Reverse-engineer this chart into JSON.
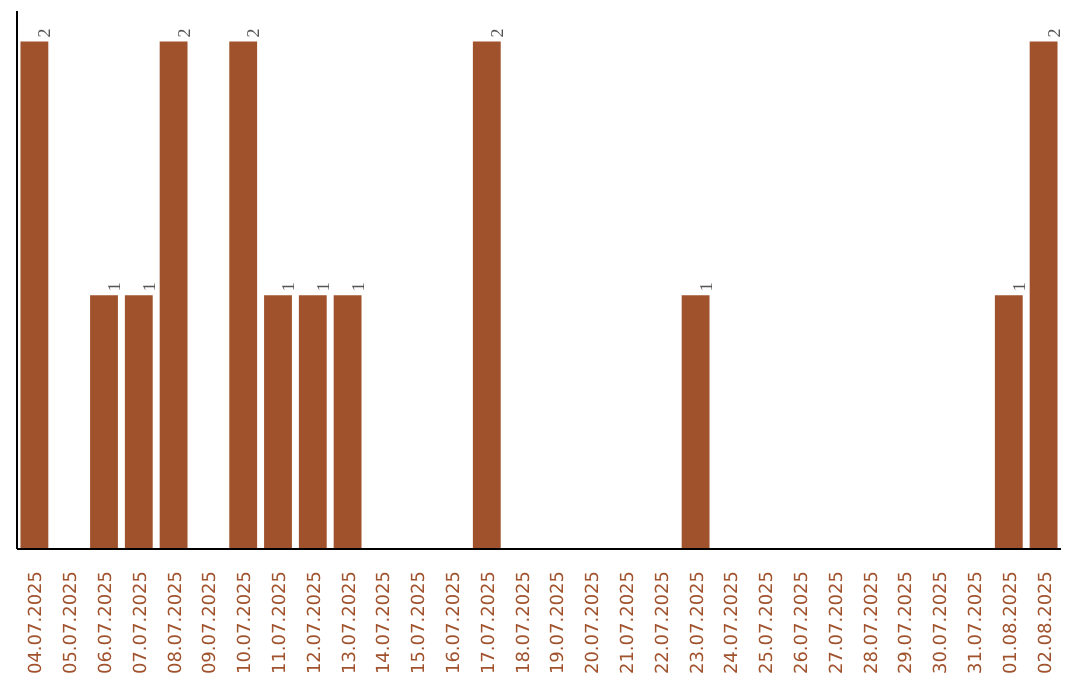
{
  "chart_data": {
    "type": "bar",
    "categories": [
      "04.07.2025",
      "05.07.2025",
      "06.07.2025",
      "07.07.2025",
      "08.07.2025",
      "09.07.2025",
      "10.07.2025",
      "11.07.2025",
      "12.07.2025",
      "13.07.2025",
      "14.07.2025",
      "15.07.2025",
      "16.07.2025",
      "17.07.2025",
      "18.07.2025",
      "19.07.2025",
      "20.07.2025",
      "21.07.2025",
      "22.07.2025",
      "23.07.2025",
      "24.07.2025",
      "25.07.2025",
      "26.07.2025",
      "27.07.2025",
      "28.07.2025",
      "29.07.2025",
      "30.07.2025",
      "31.07.2025",
      "01.08.2025",
      "02.08.2025"
    ],
    "values": [
      2,
      null,
      1,
      1,
      2,
      null,
      2,
      1,
      1,
      1,
      null,
      null,
      null,
      2,
      null,
      null,
      null,
      null,
      null,
      1,
      null,
      null,
      null,
      null,
      null,
      null,
      null,
      null,
      1,
      2
    ],
    "color": "#a0522d",
    "data_labels": true
  }
}
